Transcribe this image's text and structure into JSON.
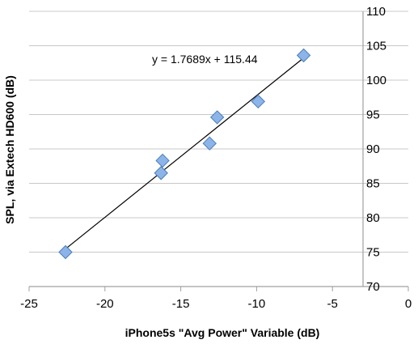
{
  "chart_data": {
    "type": "scatter",
    "title": "",
    "xlabel": "iPhone5s \"Avg Power\" Variable (dB)",
    "ylabel": "SPL, via Extech HD600 (dB)",
    "xlim": [
      -25,
      0
    ],
    "ylim": [
      70,
      110
    ],
    "x_ticks": [
      -25,
      -20,
      -15,
      -10,
      -5,
      0
    ],
    "y_ticks": [
      70,
      75,
      80,
      85,
      90,
      95,
      100,
      105,
      110
    ],
    "grid": "horizontal",
    "y_axis_side": "right",
    "points": [
      {
        "x": -22.6,
        "y": 75.0
      },
      {
        "x": -16.3,
        "y": 86.5
      },
      {
        "x": -16.2,
        "y": 88.3
      },
      {
        "x": -13.1,
        "y": 90.8
      },
      {
        "x": -12.6,
        "y": 94.6
      },
      {
        "x": -9.9,
        "y": 96.9
      },
      {
        "x": -6.9,
        "y": 103.6
      }
    ],
    "trendline": {
      "type": "linear",
      "slope": 1.7689,
      "intercept": 115.44,
      "x_range": [
        -22.6,
        -6.9
      ],
      "equation_label": "y = 1.7689x + 115.44"
    },
    "colors": {
      "marker_fill": "#8cb4e8",
      "marker_stroke": "#4a7ebb",
      "trendline": "#000000",
      "gridline": "#c8c8c8",
      "axis": "#a0a0a0"
    }
  }
}
